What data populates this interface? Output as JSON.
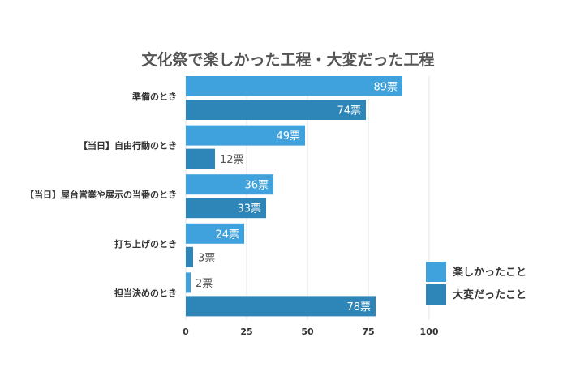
{
  "chart_data": {
    "type": "bar",
    "orientation": "horizontal",
    "title": "文化祭で楽しかった工程・大変だった工程",
    "categories": [
      "準備のとき",
      "【当日】自由行動のとき",
      "【当日】屋台営業や展示の当番のとき",
      "打ち上げのとき",
      "担当決めのとき"
    ],
    "series": [
      {
        "name": "楽しかったこと",
        "values": [
          89,
          49,
          36,
          24,
          2
        ],
        "labels": [
          "89票",
          "49票",
          "36票",
          "24票",
          "2票"
        ]
      },
      {
        "name": "大変だったこと",
        "values": [
          74,
          12,
          33,
          3,
          78
        ],
        "labels": [
          "74票",
          "12票",
          "33票",
          "3票",
          "78票"
        ]
      }
    ],
    "xlim": [
      0,
      100
    ],
    "xticks": [
      0,
      25,
      50,
      75,
      100
    ],
    "xtick_labels": [
      "0",
      "25",
      "50",
      "75",
      "100"
    ],
    "grid": true,
    "legend_position": "right",
    "colors": [
      "#3fa2dc",
      "#2e86b8"
    ],
    "grid_color": "#e6e6e6"
  }
}
